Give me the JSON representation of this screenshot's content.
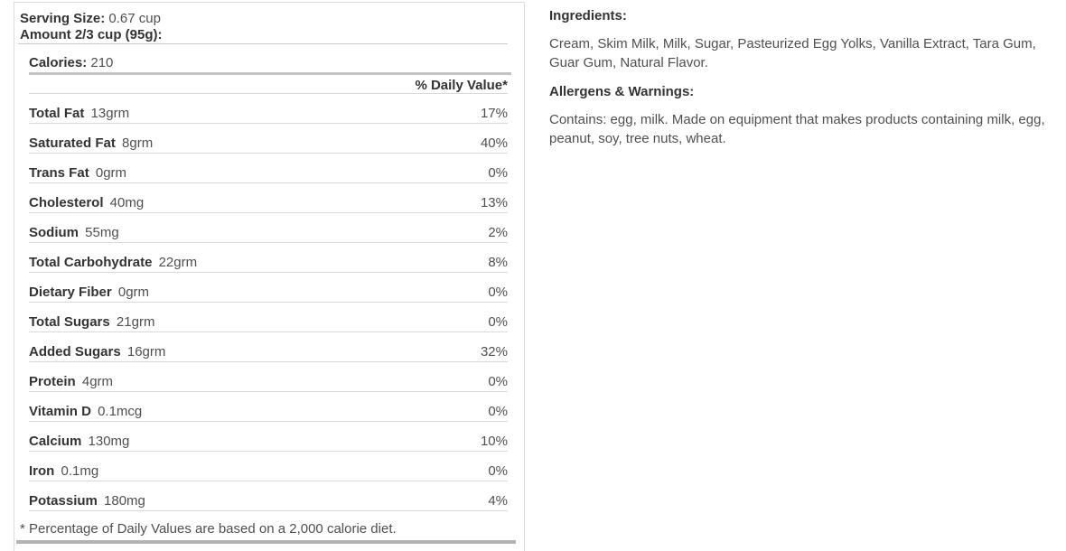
{
  "nutrition_panel": {
    "serving_size_label": "Serving Size:",
    "serving_size_value": "0.67 cup",
    "amount_line": "Amount 2/3 cup (95g):",
    "calories_label": "Calories:",
    "calories_value": "210",
    "daily_value_header": "% Daily Value*",
    "rows": [
      {
        "name": "Total Fat",
        "amount": "13grm",
        "dv": "17%"
      },
      {
        "name": "Saturated Fat",
        "amount": "8grm",
        "dv": "40%"
      },
      {
        "name": "Trans Fat",
        "amount": "0grm",
        "dv": "0%"
      },
      {
        "name": "Cholesterol",
        "amount": "40mg",
        "dv": "13%"
      },
      {
        "name": "Sodium",
        "amount": "55mg",
        "dv": "2%"
      },
      {
        "name": "Total Carbohydrate",
        "amount": "22grm",
        "dv": "8%"
      },
      {
        "name": "Dietary Fiber",
        "amount": "0grm",
        "dv": "0%"
      },
      {
        "name": "Total Sugars",
        "amount": "21grm",
        "dv": "0%"
      },
      {
        "name": "Added Sugars",
        "amount": "16grm",
        "dv": "32%"
      },
      {
        "name": "Protein",
        "amount": "4grm",
        "dv": "0%"
      },
      {
        "name": "Vitamin D",
        "amount": "0.1mcg",
        "dv": "0%"
      },
      {
        "name": "Calcium",
        "amount": "130mg",
        "dv": "10%"
      },
      {
        "name": "Iron",
        "amount": "0.1mg",
        "dv": "0%"
      },
      {
        "name": "Potassium",
        "amount": "180mg",
        "dv": "4%"
      }
    ],
    "footnote": "* Percentage of Daily Values are based on a 2,000 calorie diet."
  },
  "details": {
    "ingredients_heading": "Ingredients:",
    "ingredients_text": "Cream, Skim Milk, Milk, Sugar, Pasteurized Egg Yolks, Vanilla Extract, Tara Gum, Guar Gum, Natural Flavor.",
    "allergens_heading": "Allergens & Warnings:",
    "allergens_text": "Contains: egg, milk. Made on equipment that makes products containing milk, egg, peanut, soy, tree nuts, wheat."
  },
  "colors": {
    "text_dark": "#333333",
    "text_regular": "#4f4f4f",
    "hairline": "#d9d9d9",
    "serving_line": "#cccccc",
    "thick_bar": "#c4c4c4",
    "bottom_bar": "#b3b3b3",
    "panel_border": "#dddddd",
    "bg": "#ffffff"
  }
}
